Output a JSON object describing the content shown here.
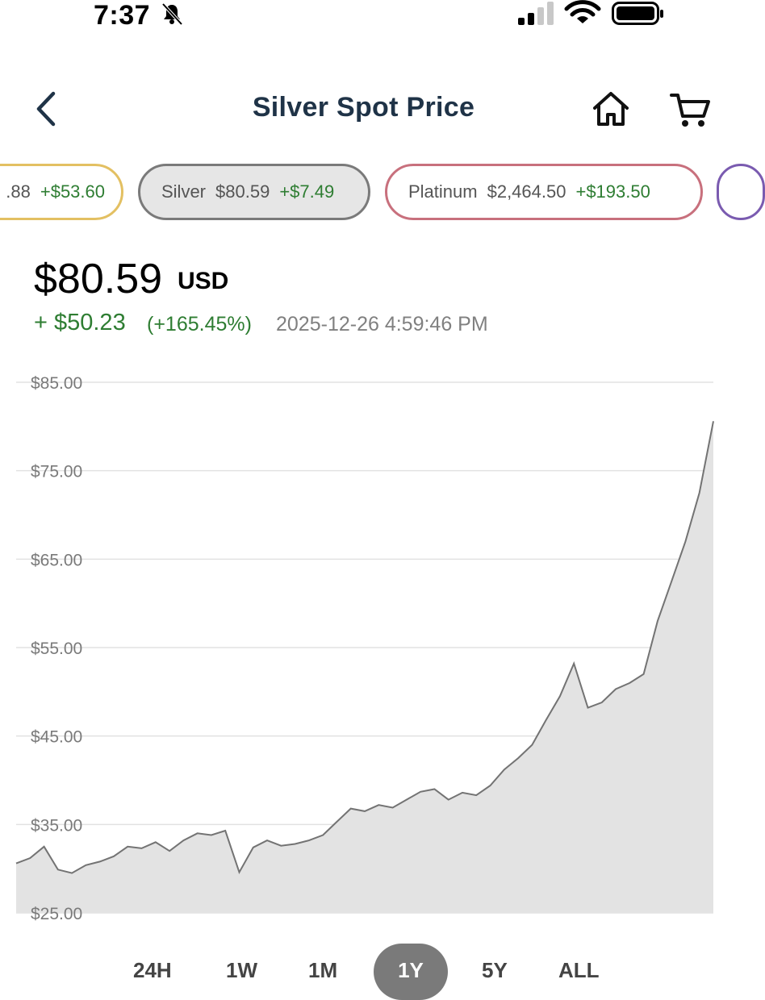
{
  "status_bar": {
    "time": "7:37"
  },
  "header": {
    "title": "Silver Spot Price"
  },
  "tickers": [
    {
      "name": "",
      "price": ".88",
      "change": "+$53.60"
    },
    {
      "name": "Silver",
      "price": "$80.59",
      "change": "+$7.49"
    },
    {
      "name": "Platinum",
      "price": "$2,464.50",
      "change": "+$193.50"
    }
  ],
  "quote": {
    "price": "$80.59",
    "unit": "USD",
    "change_abs": "+ $50.23",
    "change_pct": "(+165.45%)",
    "timestamp": "2025-12-26 4:59:46 PM"
  },
  "ranges": [
    {
      "label": "24H",
      "active": false
    },
    {
      "label": "1W",
      "active": false
    },
    {
      "label": "1M",
      "active": false
    },
    {
      "label": "1Y",
      "active": true
    },
    {
      "label": "5Y",
      "active": false
    },
    {
      "label": "ALL",
      "active": false
    }
  ],
  "colors": {
    "title": "#1f3347",
    "up": "#2e7d32",
    "gold": "#e3c062",
    "platinum": "#c8707d",
    "palladium": "#7a5bb0",
    "area": "#e3e3e3",
    "line": "#737373"
  },
  "chart_data": {
    "type": "area",
    "ylim": [
      25,
      85
    ],
    "y_ticks": [
      "$25.00",
      "$35.00",
      "$45.00",
      "$55.00",
      "$65.00",
      "$75.00",
      "$85.00"
    ],
    "x": [
      0,
      2,
      4,
      6,
      8,
      10,
      12,
      14,
      16,
      18,
      20,
      22,
      24,
      26,
      28,
      30,
      32,
      34,
      36,
      38,
      40,
      42,
      44,
      46,
      48,
      50,
      52,
      54,
      56,
      58,
      60,
      62,
      64,
      66,
      68,
      70,
      72,
      74,
      76,
      78,
      80,
      82,
      84,
      86,
      88,
      90,
      92,
      94,
      96,
      98,
      100
    ],
    "values": [
      30.6,
      31.2,
      32.5,
      29.9,
      29.5,
      30.4,
      30.8,
      31.4,
      32.5,
      32.3,
      33.0,
      32.0,
      33.2,
      34.0,
      33.8,
      34.3,
      29.6,
      32.4,
      33.2,
      32.6,
      32.8,
      33.2,
      33.8,
      35.3,
      36.8,
      36.5,
      37.2,
      36.9,
      37.8,
      38.7,
      39.0,
      37.8,
      38.6,
      38.3,
      39.4,
      41.2,
      42.5,
      44.0,
      46.8,
      49.5,
      53.2,
      48.2,
      48.8,
      50.3,
      51.0,
      52.0,
      58.0,
      62.5,
      67.0,
      72.5,
      80.6
    ]
  }
}
